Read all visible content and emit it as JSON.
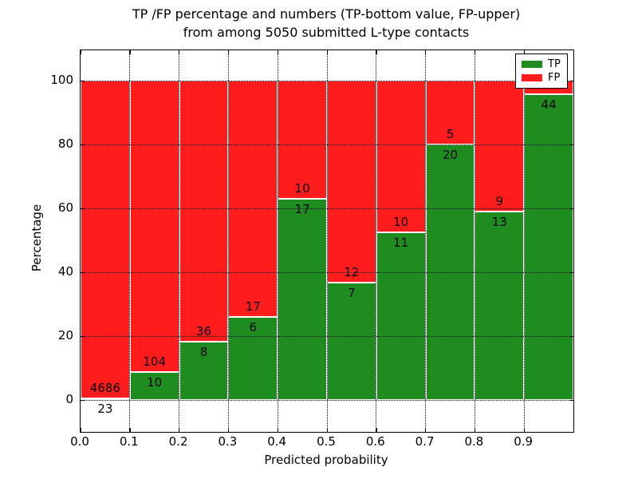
{
  "title": {
    "line1": "TP /FP percentage and numbers (TP-bottom value, FP-upper)",
    "line2": "from among 5050 submitted L-type contacts"
  },
  "axes": {
    "xlabel": "Predicted probability",
    "ylabel": "Percentage",
    "xtick_labels": [
      "0.0",
      "0.1",
      "0.2",
      "0.3",
      "0.4",
      "0.5",
      "0.6",
      "0.7",
      "0.8",
      "0.9"
    ],
    "ytick_labels": [
      "0",
      "20",
      "40",
      "60",
      "80",
      "100"
    ],
    "ytick_values": [
      0,
      20,
      40,
      60,
      80,
      100
    ],
    "xtick_values": [
      0.0,
      0.1,
      0.2,
      0.3,
      0.4,
      0.5,
      0.6,
      0.7,
      0.8,
      0.9
    ]
  },
  "legend": {
    "items": [
      {
        "label": "TP",
        "color": "#1e8c1e"
      },
      {
        "label": "FP",
        "color": "#ff1c1c"
      }
    ],
    "position": "upper right"
  },
  "colors": {
    "tp": "#1e8c1e",
    "fp": "#ff1c1c",
    "bar_edge": "#ffffff",
    "grid": "#000000",
    "frame": "#000000",
    "background": "#ffffff",
    "text": "#000000"
  },
  "chart_data": {
    "type": "bar",
    "stacked": true,
    "orientation": "vertical",
    "title": "TP /FP percentage and numbers (TP-bottom value, FP-upper) from among 5050 submitted L-type contacts",
    "xlabel": "Predicted probability",
    "ylabel": "Percentage",
    "xlim": [
      0.0,
      1.0
    ],
    "ylim": [
      -10,
      110
    ],
    "grid": true,
    "grid_style": "dotted, drawn above bars",
    "legend_position": "upper right",
    "total_submitted": 5050,
    "bin_width": 0.1,
    "bins": [
      {
        "x_start": 0.0,
        "x_end": 0.1,
        "tp_count": 23,
        "fp_count": 4686,
        "tp_pct": 0.5,
        "fp_pct": 99.5,
        "fp_label": "4686",
        "tp_label": "23"
      },
      {
        "x_start": 0.1,
        "x_end": 0.2,
        "tp_count": 10,
        "fp_count": 104,
        "tp_pct": 8.8,
        "fp_pct": 91.2,
        "fp_label": "104",
        "tp_label": "10"
      },
      {
        "x_start": 0.2,
        "x_end": 0.3,
        "tp_count": 8,
        "fp_count": 36,
        "tp_pct": 18.2,
        "fp_pct": 81.8,
        "fp_label": "36",
        "tp_label": "8"
      },
      {
        "x_start": 0.3,
        "x_end": 0.4,
        "tp_count": 6,
        "fp_count": 17,
        "tp_pct": 26.1,
        "fp_pct": 73.9,
        "fp_label": "17",
        "tp_label": "6"
      },
      {
        "x_start": 0.4,
        "x_end": 0.5,
        "tp_count": 17,
        "fp_count": 10,
        "tp_pct": 63.0,
        "fp_pct": 37.0,
        "fp_label": "10",
        "tp_label": "17"
      },
      {
        "x_start": 0.5,
        "x_end": 0.6,
        "tp_count": 7,
        "fp_count": 12,
        "tp_pct": 36.8,
        "fp_pct": 63.2,
        "fp_label": "12",
        "tp_label": "7"
      },
      {
        "x_start": 0.6,
        "x_end": 0.7,
        "tp_count": 11,
        "fp_count": 10,
        "tp_pct": 52.4,
        "fp_pct": 47.6,
        "fp_label": "10",
        "tp_label": "11"
      },
      {
        "x_start": 0.7,
        "x_end": 0.8,
        "tp_count": 20,
        "fp_count": 5,
        "tp_pct": 80.0,
        "fp_pct": 20.0,
        "fp_label": "5",
        "tp_label": "20"
      },
      {
        "x_start": 0.8,
        "x_end": 0.9,
        "tp_count": 13,
        "fp_count": 9,
        "tp_pct": 59.1,
        "fp_pct": 40.9,
        "fp_label": "9",
        "tp_label": "13"
      },
      {
        "x_start": 0.9,
        "x_end": 1.0,
        "tp_count": 44,
        "fp_count": null,
        "tp_pct": 95.7,
        "fp_pct": 4.3,
        "fp_label": "",
        "tp_label": "44"
      }
    ],
    "series": [
      {
        "name": "TP",
        "color": "#1e8c1e",
        "position": "bottom",
        "counts": [
          23,
          10,
          8,
          6,
          17,
          7,
          11,
          20,
          13,
          44
        ],
        "pct": [
          0.5,
          8.8,
          18.2,
          26.1,
          63.0,
          36.8,
          52.4,
          80.0,
          59.1,
          95.7
        ]
      },
      {
        "name": "FP",
        "color": "#ff1c1c",
        "position": "top",
        "counts": [
          4686,
          104,
          36,
          17,
          10,
          12,
          10,
          5,
          9,
          null
        ],
        "pct": [
          99.5,
          91.2,
          81.8,
          73.9,
          37.0,
          63.2,
          47.6,
          20.0,
          40.9,
          4.3
        ]
      }
    ]
  }
}
